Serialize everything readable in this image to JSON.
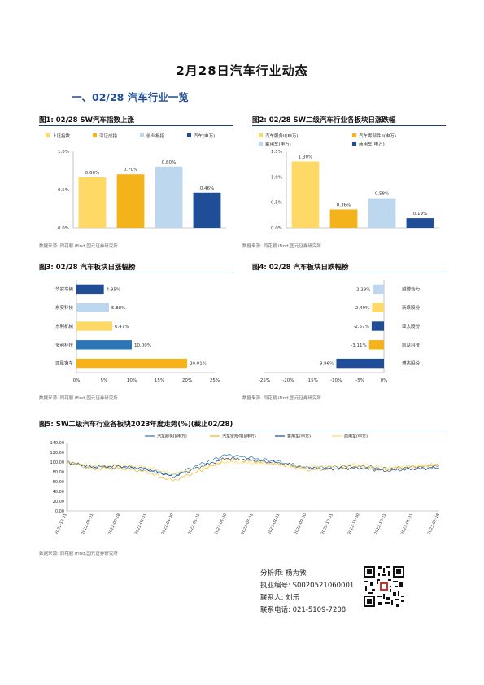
{
  "page_title": "2月28日汽车行业动态",
  "section_title": "一、02/28 汽车行业一览",
  "fig1": {
    "title": "图1: 02/28 SW汽车指数上涨",
    "source": "数据来源: 同花顺 iFind,国元证券研究所",
    "chart_data": {
      "type": "bar",
      "categories": [
        "上证指数",
        "深证成指",
        "创业板指",
        "汽车(申万)"
      ],
      "values": [
        0.66,
        0.7,
        0.8,
        0.46
      ],
      "value_labels": [
        "0.66%",
        "0.70%",
        "0.80%",
        "0.46%"
      ],
      "colors": [
        "#ffd966",
        "#f5b31b",
        "#bdd7ee",
        "#1f4e96"
      ],
      "ylim": [
        0,
        1.0
      ],
      "y_ticks": [
        "0.0%",
        "0.5%",
        "1.0%"
      ],
      "legend": "top"
    }
  },
  "fig2": {
    "title": "图2: 02/28 SW二级汽车行业各板块日涨跌幅",
    "source": "数据来源: 同花顺 iFind,国元证券研究所",
    "chart_data": {
      "type": "bar",
      "categories": [
        "汽车服务II(申万)",
        "汽车零部件II(申万)",
        "乘用车(申万)",
        "商用车(申万)"
      ],
      "values": [
        1.3,
        0.36,
        0.58,
        0.19
      ],
      "value_labels": [
        "1.30%",
        "0.36%",
        "0.58%",
        "0.19%"
      ],
      "colors": [
        "#ffd966",
        "#f5b31b",
        "#bdd7ee",
        "#1f4e96"
      ],
      "ylim": [
        0,
        1.5
      ],
      "y_ticks": [
        "0.0%",
        "0.5%",
        "1.0%",
        "1.5%"
      ],
      "legend": "top"
    }
  },
  "fig3": {
    "title": "图3: 02/28 汽车板块日涨幅榜",
    "source": "数据来源: 同花顺 iFind,国元证券研究所",
    "chart_data": {
      "type": "bar",
      "orientation": "horizontal",
      "categories": [
        "华安车辆",
        "东安科技",
        "东利机械",
        "多利科技",
        "亚星客车"
      ],
      "values": [
        4.95,
        5.88,
        6.47,
        10.0,
        20.01
      ],
      "value_labels": [
        "4.95%",
        "5.88%",
        "6.47%",
        "10.00%",
        "20.01%"
      ],
      "colors": [
        "#1f4e96",
        "#bdd7ee",
        "#ffd966",
        "#2e75b6",
        "#f5b31b"
      ],
      "xlim": [
        0,
        25
      ],
      "x_ticks": [
        "0%",
        "5%",
        "10%",
        "15%",
        "20%",
        "25%"
      ]
    }
  },
  "fig4": {
    "title": "图4: 02/28 汽车板块日跌幅榜",
    "source": "数据来源: 同花顺 iFind,国元证券研究所",
    "chart_data": {
      "type": "bar",
      "orientation": "horizontal",
      "categories": [
        "越博动力",
        "新泉股份",
        "亚太股份",
        "凯众科技",
        "博杰股份"
      ],
      "values": [
        -2.29,
        -2.49,
        -2.57,
        -3.11,
        -9.96
      ],
      "value_labels": [
        "-2.29%",
        "-2.49%",
        "-2.57%",
        "-3.11%",
        "-9.96%"
      ],
      "colors": [
        "#bdd7ee",
        "#ffd966",
        "#1f4e96",
        "#f5b31b",
        "#1f4e96"
      ],
      "xlim": [
        -25,
        0
      ],
      "x_ticks": [
        "-25%",
        "-20%",
        "-15%",
        "-10%",
        "-5%",
        "0%"
      ]
    }
  },
  "fig5": {
    "title": "图5: SW二级汽车行业各板块2023年度走势(%)(截止02/28)",
    "source": "数据来源: 同花顺 iFind,国元证券研究所",
    "chart_data": {
      "type": "line",
      "x": [
        "2021-12-31",
        "2022-01-31",
        "2022-02-28",
        "2022-03-31",
        "2022-04-30",
        "2022-05-31",
        "2022-06-30",
        "2022-07-31",
        "2022-08-31",
        "2022-09-30",
        "2022-10-31",
        "2022-11-30",
        "2022-12-31",
        "2023-01-31",
        "2023-02-28"
      ],
      "y_ticks": [
        "0.00",
        "20.00",
        "40.00",
        "60.00",
        "80.00",
        "100.00",
        "120.00",
        "140.00"
      ],
      "ylim": [
        0,
        140
      ],
      "series": [
        {
          "name": "汽车服务II(申万)",
          "color": "#2e75b6",
          "values": [
            100,
            88,
            90,
            84,
            72,
            95,
            115,
            108,
            100,
            88,
            90,
            92,
            86,
            90,
            92
          ]
        },
        {
          "name": "汽车零部件II(申万)",
          "color": "#f5b31b",
          "values": [
            100,
            86,
            88,
            80,
            62,
            82,
            105,
            102,
            96,
            84,
            86,
            90,
            84,
            90,
            94
          ]
        },
        {
          "name": "乘用车(申万)",
          "color": "#1f4e96",
          "values": [
            100,
            90,
            92,
            86,
            70,
            90,
            108,
            104,
            98,
            88,
            86,
            88,
            82,
            86,
            88
          ]
        },
        {
          "name": "商用车(申万)",
          "color": "#ffd966",
          "values": [
            100,
            92,
            94,
            90,
            76,
            88,
            100,
            98,
            95,
            90,
            92,
            95,
            88,
            92,
            95
          ]
        }
      ],
      "legend": "top"
    }
  },
  "analyst": {
    "analyst_line": "分析师: 杨为敩",
    "license_line": "执业编号: S0020521060001",
    "contact_line": "联系人: 刘乐",
    "phone_line": "联系电话: 021-5109-7208"
  }
}
